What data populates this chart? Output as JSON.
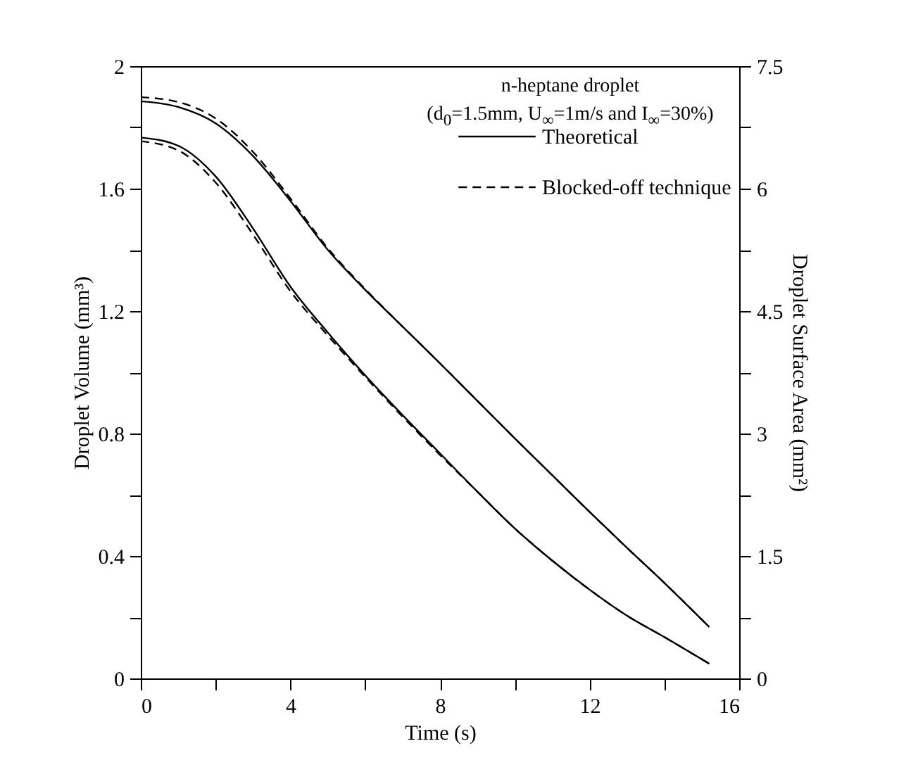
{
  "chart_data": {
    "type": "line",
    "xlabel": "Time (s)",
    "ylabel": "Droplet Volume (mm³)",
    "y2label": "Droplet Surface Area (mm²)",
    "legend_title": "n-heptane droplet\n(d$_{0}$=1.5mm, U$_{∞}$=1m/s and I$_{∞}$=30%)",
    "x": [
      0,
      1,
      2,
      3,
      4,
      5,
      6,
      7,
      8,
      9,
      10,
      11,
      12,
      13,
      14,
      15.2
    ],
    "series": [
      {
        "name": "Theoretical",
        "color": "#000000",
        "line_style": "solid",
        "values": [
          1.767,
          1.74,
          1.64,
          1.47,
          1.28,
          1.13,
          0.99,
          0.86,
          0.735,
          0.61,
          0.49,
          0.385,
          0.29,
          0.205,
          0.135,
          0.048
        ]
      },
      {
        "name": "Blocked-off technique",
        "color": "#000000",
        "line_style": "dashed",
        "values": [
          1.755,
          1.725,
          1.62,
          1.45,
          1.265,
          1.12,
          0.985,
          0.855,
          0.73,
          0.61,
          0.49,
          0.385,
          0.29,
          0.205,
          0.135,
          0.048
        ]
      },
      {
        "color": "#000000",
        "line_style": "solid",
        "axis": "y2",
        "values": [
          7.07,
          7.0,
          6.8,
          6.4,
          5.85,
          5.25,
          4.76,
          4.31,
          3.86,
          3.4,
          2.94,
          2.49,
          2.04,
          1.6,
          1.17,
          0.63
        ]
      },
      {
        "color": "#000000",
        "line_style": "dashed",
        "axis": "y2",
        "values": [
          7.12,
          7.06,
          6.86,
          6.45,
          5.88,
          5.27,
          4.77,
          4.31,
          3.86,
          3.4,
          2.94,
          2.49,
          2.04,
          1.6,
          1.17,
          0.63
        ]
      }
    ],
    "xlim": [
      0,
      16
    ],
    "xticks": [
      0,
      {
        "value": 2,
        "label": null
      },
      4,
      {
        "value": 6,
        "label": null
      },
      8,
      {
        "value": 10,
        "label": null
      },
      12,
      {
        "value": 14,
        "label": null
      },
      16
    ],
    "ylim": [
      0,
      2
    ],
    "yticks": [
      0,
      {
        "value": 0.2,
        "label": null
      },
      0.4,
      {
        "value": 0.6,
        "label": null
      },
      0.8,
      {
        "value": 1,
        "label": null
      },
      1.2,
      {
        "value": 1.4,
        "label": null
      },
      1.6,
      {
        "value": 1.8,
        "label": null
      },
      2
    ],
    "y2lim": [
      0,
      7.5
    ],
    "y2ticks": [
      0,
      {
        "value": 0.75,
        "label": null
      },
      1.5,
      {
        "value": 2.25,
        "label": null
      },
      3,
      {
        "value": 3.75,
        "label": null
      },
      4.5,
      {
        "value": 5.25,
        "label": null
      },
      6,
      {
        "value": 6.75,
        "label": null
      },
      7.5
    ],
    "grid": false,
    "legend": "top right"
  }
}
